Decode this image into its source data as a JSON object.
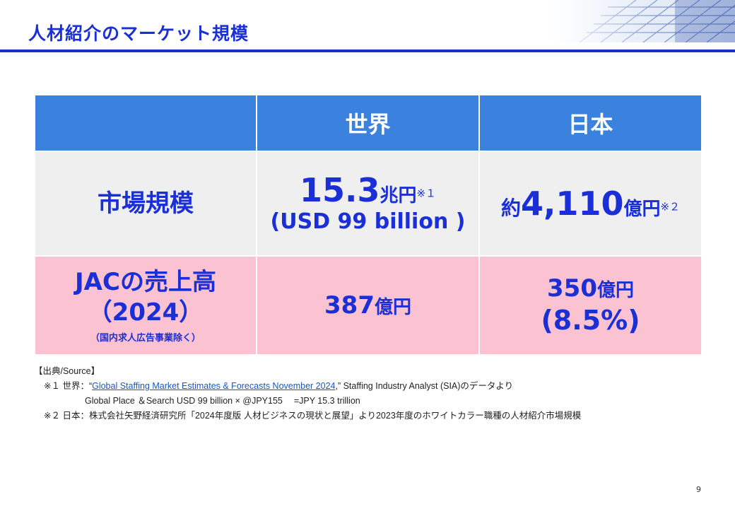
{
  "header": {
    "title": "人材紹介のマーケット規模"
  },
  "table": {
    "columns": [
      "",
      "世界",
      "日本"
    ],
    "rows": [
      {
        "label": "市場規模",
        "world": {
          "value": "15.3",
          "unit": "兆円",
          "note": "※１",
          "line2": "(USD 99 billion )"
        },
        "japan": {
          "prefix": "約",
          "value": "4,110",
          "unit": "億円",
          "note": "※２"
        }
      },
      {
        "label": "JACの売上高",
        "label_year": "（2024）",
        "label_sub": "（国内求人広告事業除く）",
        "world": {
          "value": "387",
          "unit": "億円"
        },
        "japan": {
          "value": "350",
          "unit": "億円",
          "line2": "(8.5%)"
        }
      }
    ]
  },
  "sources": {
    "heading": "【出典/Source】",
    "note1_prefix": "※１ 世界：“",
    "note1_link": "Global Staffing Market Estimates & Forecasts November 2024",
    "note1_suffix": ",” Staffing Industry Analyst (SIA)のデータより",
    "note1_detail": "Global Place ＆Search USD 99 billion × @JPY155 　=JPY 15.3 trillion",
    "note2": "※２ 日本：株式会社矢野経済研究所「2024年度版 人材ビジネスの現状と展望」より2023年度のホワイトカラー職種の人材紹介市場規模"
  },
  "page_number": "9"
}
